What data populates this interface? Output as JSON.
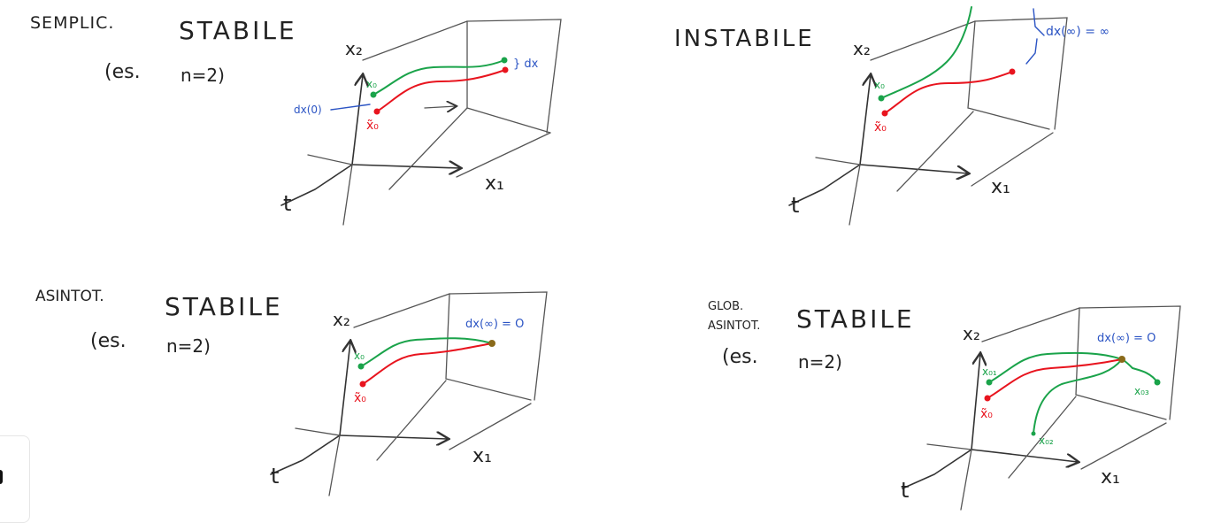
{
  "panels": [
    {
      "id": "semplic",
      "prefix": "SEMPLIC.",
      "title": "STABILE",
      "example": [
        "(es.",
        "n=2)"
      ],
      "axis_x2": "x₂",
      "axis_x1": "x₁",
      "axis_t": "t",
      "labels": {
        "x0_green": "x₀",
        "x0_red": "x̃₀",
        "dx0": "dx(0)",
        "dx": "} dx"
      }
    },
    {
      "id": "instabile",
      "prefix": "",
      "title": "INSTABILE",
      "axis_x2": "x₂",
      "axis_x1": "x₁",
      "axis_t": "t",
      "labels": {
        "x0_green": "x₀",
        "x0_red": "x̃₀",
        "dxinf": "dx(∞) = ∞"
      }
    },
    {
      "id": "asintot",
      "prefix": "ASINTOT.",
      "title": "STABILE",
      "example": [
        "(es.",
        "n=2)"
      ],
      "axis_x2": "x₂",
      "axis_x1": "x₁",
      "axis_t": "t",
      "labels": {
        "x0_green": "x₀",
        "x0_red": "x̃₀",
        "dxinf": "dx(∞) = O"
      }
    },
    {
      "id": "glob",
      "prefix": [
        "GLOB.",
        "ASINTOT."
      ],
      "title": "STABILE",
      "example": [
        "(es.",
        "n=2)"
      ],
      "axis_x2": "x₂",
      "axis_x1": "x₁",
      "axis_t": "t",
      "labels": {
        "x01": "x₀₁",
        "x0_red": "x̃₀",
        "x02": "x₀₂",
        "x03": "x₀₃",
        "dxinf": "dx(∞) = O"
      }
    }
  ],
  "colors": {
    "green": "#1aa34a",
    "red": "#e8141e",
    "blue": "#2b54c4",
    "ink": "#333333"
  }
}
